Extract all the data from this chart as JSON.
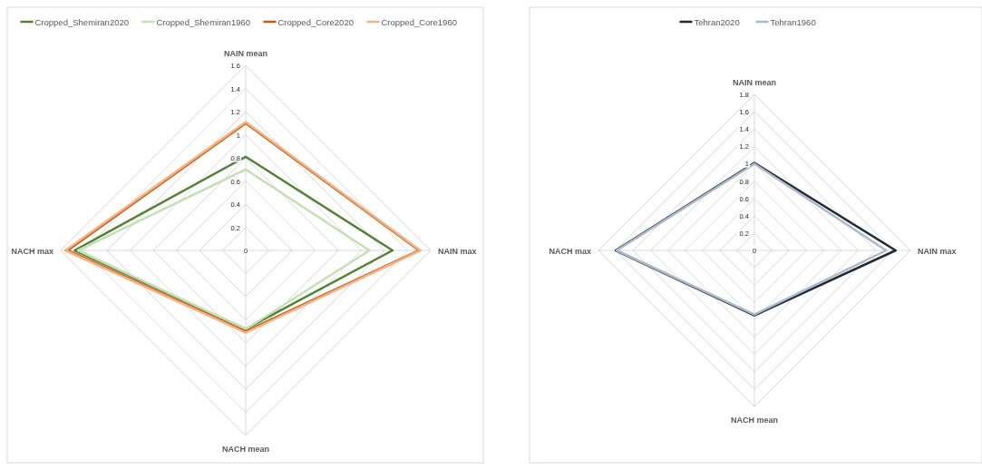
{
  "chart_data": [
    {
      "type": "radar",
      "categories": [
        "NAIN mean",
        "NAIN max",
        "NACH mean",
        "NACH max"
      ],
      "ylim": [
        0,
        1.6
      ],
      "yticks": [
        0,
        0.2,
        0.4,
        0.6,
        0.8,
        1,
        1.2,
        1.4,
        1.6
      ],
      "grid": true,
      "legend": "top",
      "series": [
        {
          "name": "Cropped_Shemiran2020",
          "color": "#538135",
          "values": [
            0.81,
            1.27,
            0.68,
            1.48
          ]
        },
        {
          "name": "Cropped_Shemiran1960",
          "color": "#c5e0b4",
          "values": [
            0.7,
            1.07,
            0.68,
            1.45
          ]
        },
        {
          "name": "Cropped_Core2020",
          "color": "#c55a11",
          "values": [
            1.1,
            1.5,
            0.7,
            1.54
          ]
        },
        {
          "name": "Cropped_Core1960",
          "color": "#f4b183",
          "values": [
            1.11,
            1.51,
            0.71,
            1.56
          ]
        }
      ]
    },
    {
      "type": "radar",
      "categories": [
        "NAIN mean",
        "NAIN max",
        "NACH mean",
        "NACH max"
      ],
      "ylim": [
        0,
        1.8
      ],
      "yticks": [
        0,
        0.2,
        0.4,
        0.6,
        0.8,
        1,
        1.2,
        1.4,
        1.6,
        1.8
      ],
      "grid": true,
      "legend": "top",
      "series": [
        {
          "name": "Tehran2020",
          "color": "#222a35",
          "values": [
            1.01,
            1.63,
            0.75,
            1.6
          ]
        },
        {
          "name": "Tehran1960",
          "color": "#adb9ca",
          "values": [
            1.0,
            1.52,
            0.74,
            1.59
          ]
        }
      ]
    }
  ]
}
